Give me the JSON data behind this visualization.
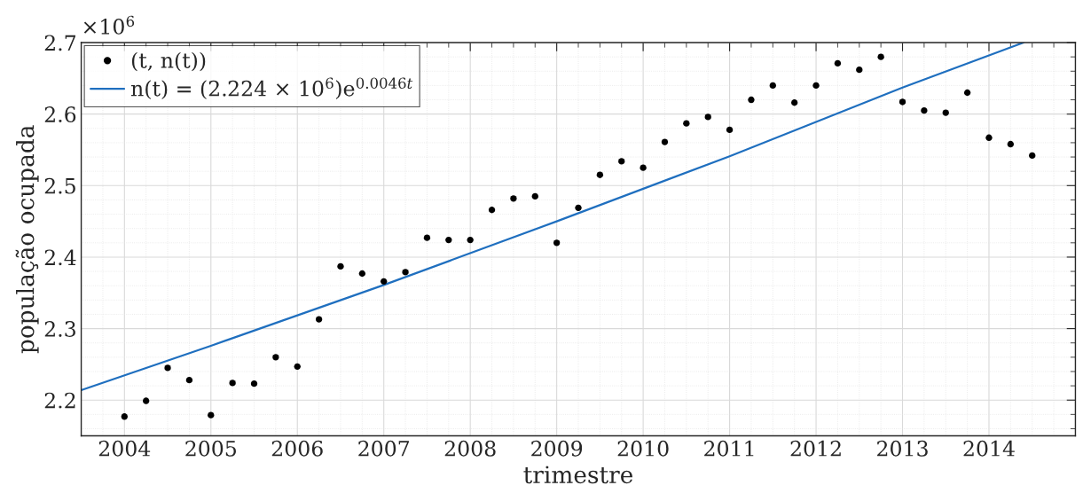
{
  "chart_data": {
    "type": "scatter",
    "xlabel": "trimestre",
    "ylabel": "população ocupada",
    "annotations": [
      "×10$^{6}$"
    ],
    "series": [
      {
        "name": "(t, n(t))",
        "color": "#000000",
        "marker": "circle",
        "x": [
          2004.0,
          2004.25,
          2004.5,
          2004.75,
          2005.0,
          2005.25,
          2005.5,
          2005.75,
          2006.0,
          2006.25,
          2006.5,
          2006.75,
          2007.0,
          2007.25,
          2007.5,
          2007.75,
          2008.0,
          2008.25,
          2008.5,
          2008.75,
          2009.0,
          2009.25,
          2009.5,
          2009.75,
          2010.0,
          2010.25,
          2010.5,
          2010.75,
          2011.0,
          2011.25,
          2011.5,
          2011.75,
          2012.0,
          2012.25,
          2012.5,
          2012.75,
          2013.0,
          2013.25,
          2013.5,
          2013.75,
          2014.0,
          2014.25,
          2014.5
        ],
        "values": [
          2.177,
          2.199,
          2.245,
          2.228,
          2.179,
          2.224,
          2.223,
          2.26,
          2.247,
          2.313,
          2.387,
          2.377,
          2.366,
          2.379,
          2.427,
          2.424,
          2.424,
          2.466,
          2.482,
          2.485,
          2.42,
          2.469,
          2.515,
          2.534,
          2.525,
          2.561,
          2.587,
          2.596,
          2.578,
          2.62,
          2.64,
          2.616,
          2.64,
          2.671,
          2.662,
          2.68,
          2.617,
          2.605,
          2.602,
          2.63,
          2.567,
          2.558,
          2.542
        ]
      },
      {
        "name": "n(t) = (2.224 × 10$^{6}$)e$^{0.0046t}$",
        "type": "line",
        "color": "#1f6fbf",
        "line_style": "solid",
        "x": [
          2003.5,
          2005,
          2007,
          2009,
          2011,
          2013,
          2014.4
        ],
        "values": [
          2.214,
          2.276,
          2.361,
          2.45,
          2.541,
          2.637,
          2.7
        ]
      }
    ],
    "xlim": [
      2003.5,
      2015
    ],
    "ylim": [
      2.15,
      2.7
    ],
    "xticks": [
      2004,
      2005,
      2006,
      2007,
      2008,
      2009,
      2010,
      2011,
      2012,
      2013,
      2014
    ],
    "yticks": [
      2.2,
      2.3,
      2.4,
      2.5,
      2.6,
      2.7
    ],
    "grid": true,
    "legend": "top left"
  }
}
